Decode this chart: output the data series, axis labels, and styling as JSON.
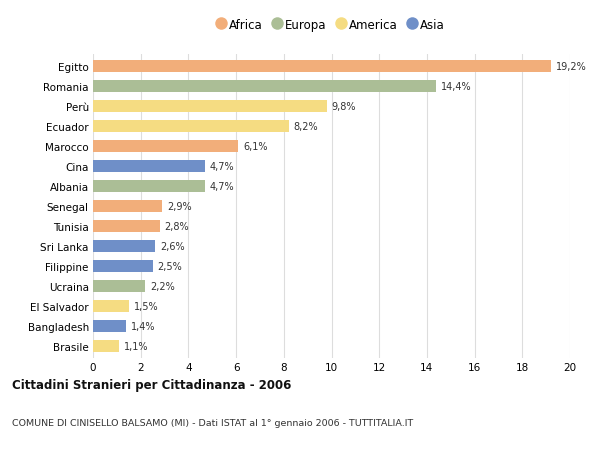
{
  "countries": [
    "Egitto",
    "Romania",
    "Perù",
    "Ecuador",
    "Marocco",
    "Cina",
    "Albania",
    "Senegal",
    "Tunisia",
    "Sri Lanka",
    "Filippine",
    "Ucraina",
    "El Salvador",
    "Bangladesh",
    "Brasile"
  ],
  "values": [
    19.2,
    14.4,
    9.8,
    8.2,
    6.1,
    4.7,
    4.7,
    2.9,
    2.8,
    2.6,
    2.5,
    2.2,
    1.5,
    1.4,
    1.1
  ],
  "categories": [
    "Africa",
    "Europa",
    "America",
    "America",
    "Africa",
    "Asia",
    "Europa",
    "Africa",
    "Africa",
    "Asia",
    "Asia",
    "Europa",
    "America",
    "Asia",
    "America"
  ],
  "colors": {
    "Africa": "#F2AE7A",
    "Europa": "#ABBE96",
    "America": "#F5DC82",
    "Asia": "#6F8FC8"
  },
  "legend_order": [
    "Africa",
    "Europa",
    "America",
    "Asia"
  ],
  "title": "Cittadini Stranieri per Cittadinanza - 2006",
  "subtitle": "COMUNE DI CINISELLO BALSAMO (MI) - Dati ISTAT al 1° gennaio 2006 - TUTTITALIA.IT",
  "xlim": [
    0,
    20
  ],
  "xticks": [
    0,
    2,
    4,
    6,
    8,
    10,
    12,
    14,
    16,
    18,
    20
  ],
  "bar_height": 0.6,
  "background_color": "#ffffff",
  "grid_color": "#dddddd"
}
